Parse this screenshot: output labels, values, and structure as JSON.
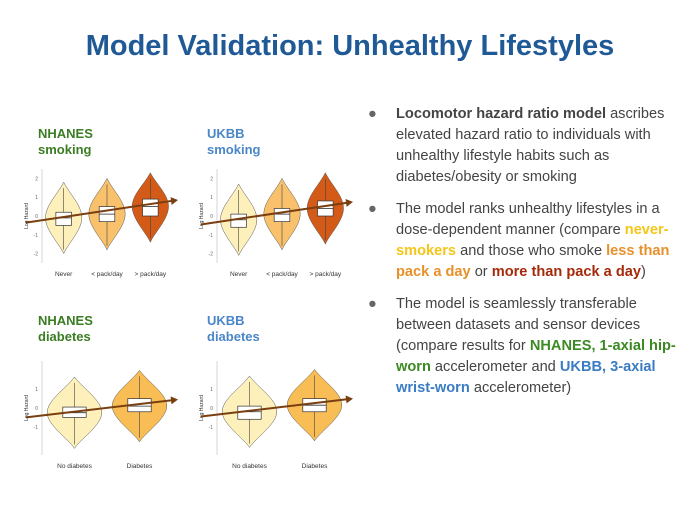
{
  "title": "Model Validation: Unhealthy Lifestyles",
  "chart_data": [
    {
      "type": "violin",
      "dataset": "NHANES",
      "label_line1": "NHANES",
      "label_line2": "smoking",
      "ylabel": "Log Hazard",
      "yticks": [
        "2",
        "1",
        "0",
        "-1",
        "-2"
      ],
      "categories": [
        "Never",
        "< pack/day",
        "> pack/day"
      ],
      "medians": [
        -0.1,
        0.1,
        0.5
      ],
      "q1": [
        -0.5,
        -0.3,
        0.0
      ],
      "q3": [
        0.2,
        0.5,
        0.9
      ],
      "colors": [
        "#fdf0bb",
        "#f9c16b",
        "#d35a17"
      ]
    },
    {
      "type": "violin",
      "dataset": "UKBB",
      "label_line1": "UKBB",
      "label_line2": "smoking",
      "ylabel": "Log Hazard",
      "yticks": [
        "2",
        "1",
        "0",
        "-1",
        "-2"
      ],
      "categories": [
        "Never",
        "< pack/day",
        "> pack/day"
      ],
      "medians": [
        -0.2,
        0.1,
        0.4
      ],
      "q1": [
        -0.6,
        -0.3,
        0.0
      ],
      "q3": [
        0.1,
        0.4,
        0.8
      ],
      "colors": [
        "#fdf0bb",
        "#f9c16b",
        "#d35a17"
      ]
    },
    {
      "type": "violin",
      "dataset": "NHANES",
      "label_line1": "NHANES",
      "label_line2": "diabetes",
      "ylabel": "Log Hazard",
      "yticks": [
        "1",
        "0",
        "-1"
      ],
      "categories": [
        "No diabetes",
        "Diabetes"
      ],
      "medians": [
        -0.25,
        0.1
      ],
      "q1": [
        -0.5,
        -0.2
      ],
      "q3": [
        0.05,
        0.5
      ],
      "colors": [
        "#fdf0bb",
        "#f8bd55"
      ]
    },
    {
      "type": "violin",
      "dataset": "UKBB",
      "label_line1": "UKBB",
      "label_line2": "diabetes",
      "ylabel": "Log Hazard",
      "yticks": [
        "1",
        "0",
        "-1"
      ],
      "categories": [
        "No diabetes",
        "Diabetes"
      ],
      "medians": [
        -0.2,
        0.15
      ],
      "q1": [
        -0.6,
        -0.2
      ],
      "q3": [
        0.1,
        0.5
      ],
      "colors": [
        "#fdf0bb",
        "#f8bd55"
      ]
    }
  ],
  "bullets": [
    {
      "parts": [
        {
          "text": "Locomotor hazard ratio model",
          "style": "bold"
        },
        {
          "text": " ascribes elevated hazard ratio to individuals with unhealthy lifestyle habits such as diabetes/obesity or smoking",
          "style": ""
        }
      ]
    },
    {
      "parts": [
        {
          "text": "The model ranks unhealthy lifestyles in a dose-dependent manner (compare ",
          "style": ""
        },
        {
          "text": "never-smokers",
          "style": "never"
        },
        {
          "text": " and those who smoke ",
          "style": ""
        },
        {
          "text": "less than pack a day",
          "style": "less"
        },
        {
          "text": " or ",
          "style": ""
        },
        {
          "text": "more than pack a day",
          "style": "more"
        },
        {
          "text": ")",
          "style": ""
        }
      ]
    },
    {
      "parts": [
        {
          "text": "The model is seamlessly transferable between datasets and sensor devices (compare results for ",
          "style": ""
        },
        {
          "text": "NHANES, 1-axial hip-worn",
          "style": "ng"
        },
        {
          "text": " accelerometer and ",
          "style": ""
        },
        {
          "text": "UKBB, 3-axial wrist-worn",
          "style": "ub"
        },
        {
          "text": " accelerometer)",
          "style": ""
        }
      ]
    }
  ],
  "colors": {
    "title": "#1f5a96",
    "nhanes": "#3b7d23",
    "ukbb": "#4a86c8",
    "arrow": "#7a3f10"
  }
}
